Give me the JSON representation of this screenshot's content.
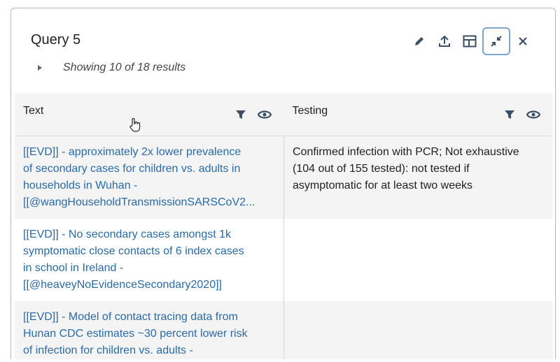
{
  "panel": {
    "title": "Query 5",
    "summary": "Showing 10 of 18 results",
    "toolbar": [
      {
        "icon": "pencil-icon",
        "label": "Edit"
      },
      {
        "icon": "upload-icon",
        "label": "Export"
      },
      {
        "icon": "layout-icon",
        "label": "Layout"
      },
      {
        "icon": "collapse-icon",
        "label": "Minimize",
        "active": true
      },
      {
        "icon": "close-icon",
        "label": "Close"
      }
    ]
  },
  "table": {
    "columns": [
      {
        "label": "Text"
      },
      {
        "label": "Testing"
      }
    ],
    "rows": [
      {
        "text_lines": [
          "[[EVD]] - approximately 2x lower prevalence",
          "of secondary cases for children vs. adults in",
          "households in Wuhan -",
          "[[@wangHouseholdTransmissionSARSCoV2..."
        ],
        "testing_lines": [
          "Confirmed infection with PCR; Not exhaustive",
          "(104 out of 155 tested): not tested if",
          "asymptomatic for at least two weeks"
        ]
      },
      {
        "text_lines": [
          "[[EVD]] - No secondary cases amongst 1k",
          "symptomatic close contacts of 6 index cases",
          "in school in Ireland -",
          "[[@heaveyNoEvidenceSecondary2020]]"
        ],
        "testing_lines": []
      },
      {
        "text_lines": [
          "[[EVD]] - Model of contact tracing data from",
          "Hunan CDC estimates ~30 percent lower risk",
          "of infection for children vs. adults -"
        ],
        "testing_lines": []
      }
    ]
  },
  "colors": {
    "link": "#2a6aa6",
    "header_bg": "#f4f4f4",
    "icon": "#3d4f63",
    "active_border": "#7fa6cf"
  }
}
